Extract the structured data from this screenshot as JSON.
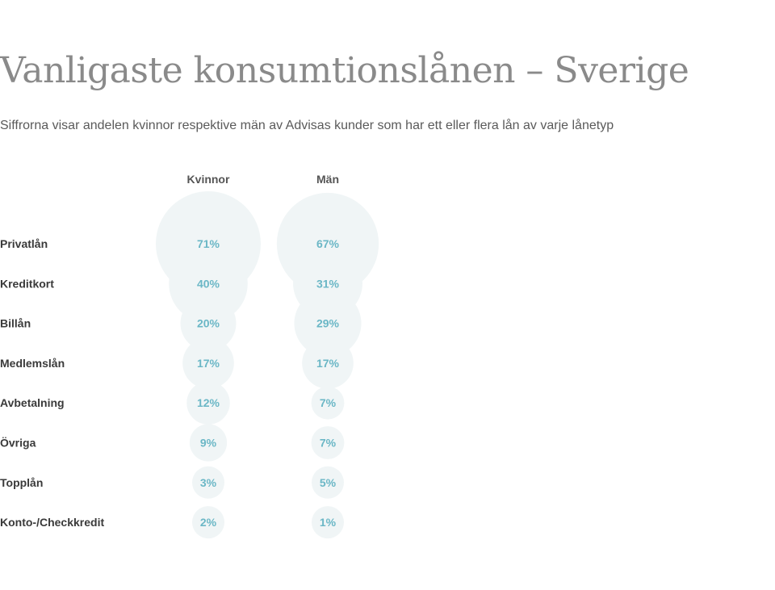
{
  "title": "Vanligaste konsumtionslånen – Sverige",
  "subtitle": "Siffrorna visar andelen kvinnor respektive män av Advisas kunder som har ett eller flera lån av varje lånetyp",
  "chart_data": {
    "type": "bubble-table",
    "columns": [
      "Kvinnor",
      "Män"
    ],
    "categories": [
      "Privatlån",
      "Kreditkort",
      "Billån",
      "Medlemslån",
      "Avbetalning",
      "Övriga",
      "Topplån",
      "Konto-/Checkkredit"
    ],
    "series": [
      {
        "name": "Kvinnor",
        "values": [
          71,
          40,
          20,
          17,
          12,
          9,
          3,
          2
        ],
        "labels": [
          "71%",
          "40%",
          "20%",
          "17%",
          "12%",
          "9%",
          "3%",
          "2%"
        ]
      },
      {
        "name": "Män",
        "values": [
          67,
          31,
          29,
          17,
          7,
          7,
          5,
          1
        ],
        "labels": [
          "67%",
          "31%",
          "29%",
          "17%",
          "7%",
          "7%",
          "5%",
          "1%"
        ]
      }
    ],
    "unit": "%",
    "colors": {
      "bubble": "#f0f5f6",
      "value_text": "#6bb7c6",
      "label_text": "#3a3a3a"
    }
  }
}
